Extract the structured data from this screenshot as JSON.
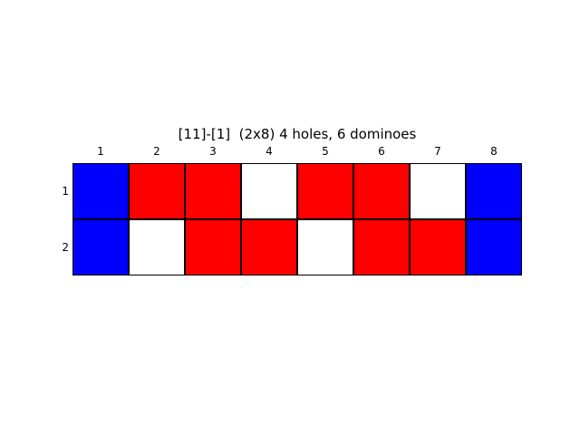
{
  "title": "[11]-[1]  (2x8) 4 holes, 6 dominoes",
  "columns": [
    "1",
    "2",
    "3",
    "4",
    "5",
    "6",
    "7",
    "8"
  ],
  "rows": [
    "1",
    "2"
  ],
  "colors": {
    "blue": "#0000ff",
    "red": "#ff0000",
    "white": "#ffffff"
  },
  "grid": [
    [
      "blue",
      "red",
      "red",
      "white",
      "red",
      "red",
      "white",
      "blue"
    ],
    [
      "blue",
      "white",
      "red",
      "red",
      "white",
      "red",
      "red",
      "blue"
    ]
  ]
}
